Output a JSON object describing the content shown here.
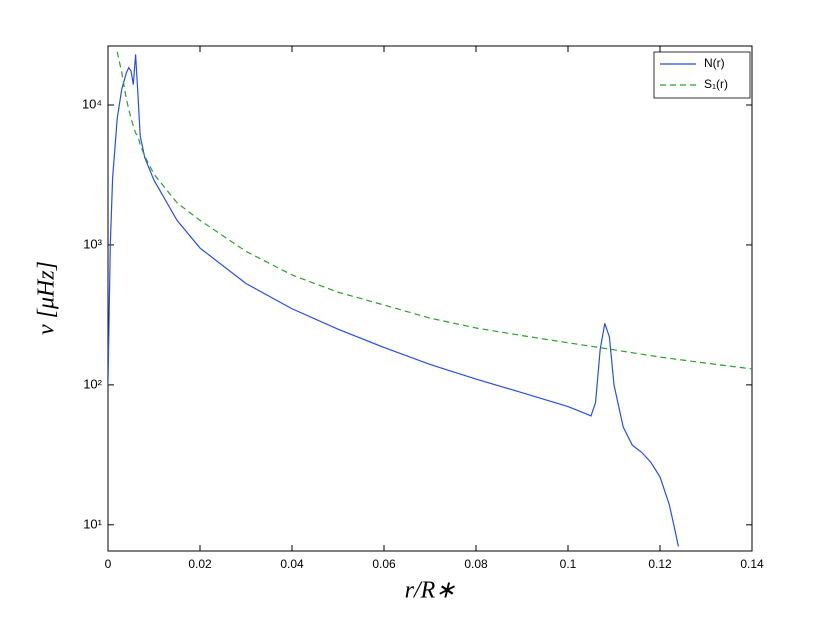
{
  "chart_data": {
    "type": "line",
    "xlabel": "r/R∗",
    "ylabel": "ν  [μHz]",
    "xlim": [
      0,
      0.14
    ],
    "xticks": [
      0,
      0.02,
      0.04,
      0.06,
      0.08,
      0.1,
      0.12,
      0.14
    ],
    "ylim": [
      6.5,
      26400
    ],
    "y_scale": "log",
    "yticks": [
      {
        "value": 10,
        "label": "10¹"
      },
      {
        "value": 100,
        "label": "10²"
      },
      {
        "value": 1000,
        "label": "10³"
      },
      {
        "value": 10000,
        "label": "10⁴"
      }
    ],
    "legend": "upper right",
    "series": [
      {
        "name": "N(r)",
        "color": "#2b4fe0",
        "dash": "solid",
        "x": [
          0,
          0.0005,
          0.001,
          0.002,
          0.003,
          0.004,
          0.0045,
          0.005,
          0.0055,
          0.006,
          0.0065,
          0.007,
          0.008,
          0.01,
          0.015,
          0.02,
          0.03,
          0.04,
          0.05,
          0.06,
          0.07,
          0.08,
          0.09,
          0.1,
          0.104,
          0.105,
          0.106,
          0.107,
          0.108,
          0.109,
          0.11,
          0.112,
          0.114,
          0.116,
          0.118,
          0.12,
          0.122,
          0.123,
          0.124
        ],
        "values": [
          100,
          1000,
          3000,
          8000,
          13000,
          17000,
          18500,
          17500,
          14000,
          23000,
          12000,
          6000,
          4200,
          2900,
          1500,
          950,
          530,
          350,
          250,
          185,
          140,
          110,
          88,
          70,
          62,
          60,
          75,
          180,
          275,
          220,
          100,
          50,
          37,
          33,
          28,
          22,
          14,
          10,
          7
        ]
      },
      {
        "name": "S₁(r)",
        "color": "#2ca02c",
        "dash": "dashed",
        "x": [
          0.002,
          0.003,
          0.004,
          0.005,
          0.006,
          0.0065,
          0.007,
          0.008,
          0.01,
          0.015,
          0.02,
          0.03,
          0.04,
          0.05,
          0.06,
          0.07,
          0.08,
          0.09,
          0.1,
          0.11,
          0.12,
          0.13,
          0.14
        ],
        "values": [
          24000,
          17000,
          11000,
          8000,
          6300,
          6000,
          5200,
          4300,
          3200,
          2000,
          1500,
          900,
          610,
          460,
          372,
          300,
          255,
          225,
          200,
          178,
          158,
          143,
          130
        ]
      }
    ]
  }
}
